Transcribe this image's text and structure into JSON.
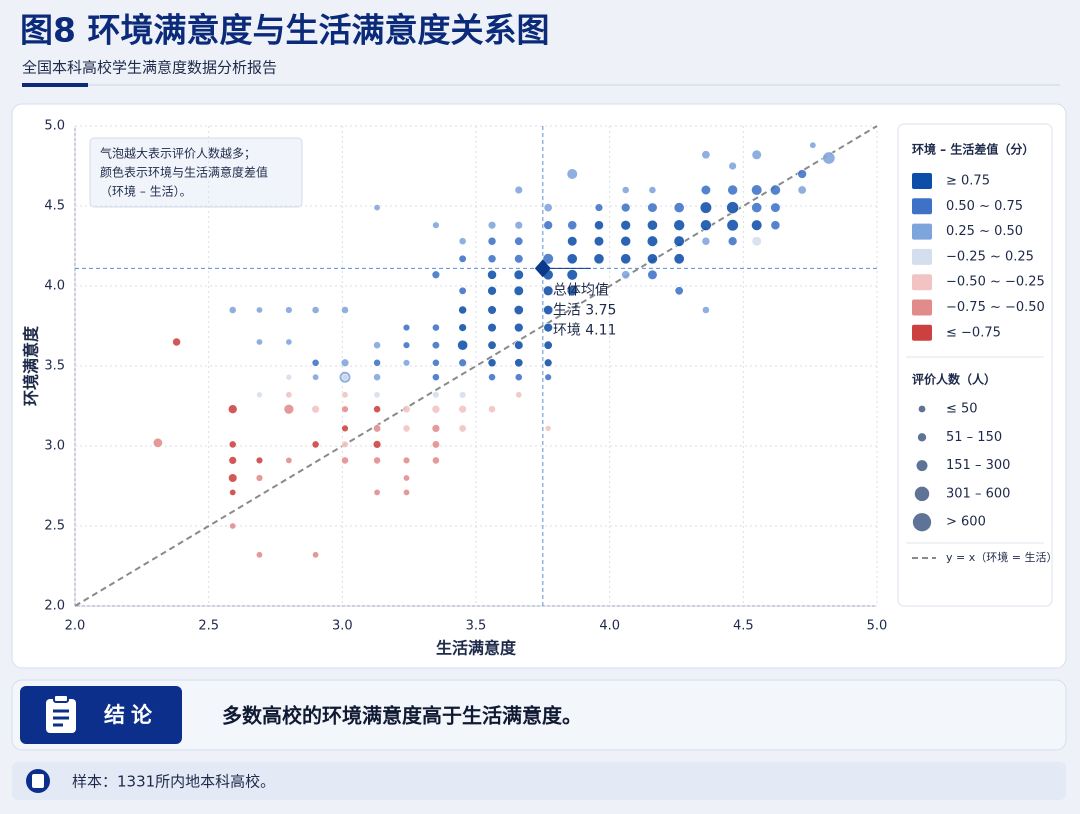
{
  "chart_data": {
    "type": "scatter",
    "title": "图8  环境满意度与生活满意度关系图",
    "subtitle": "全国本科高校学生满意度数据分析报告",
    "x_label": "生活满意度",
    "y_label": "环境满意度",
    "xlim": [
      2.0,
      5.0
    ],
    "ylim": [
      2.0,
      5.0
    ],
    "xticks": [
      {
        "value": 2.0,
        "label": "2.0"
      },
      {
        "value": 2.5,
        "label": "2.5"
      },
      {
        "value": 3.0,
        "label": "3.0"
      },
      {
        "value": 3.5,
        "label": "3.5"
      },
      {
        "value": 4.0,
        "label": "4.0"
      },
      {
        "value": 4.5,
        "label": "4.5"
      },
      {
        "value": 5.0,
        "label": "5.0"
      }
    ],
    "yticks": [
      {
        "value": 2.0,
        "label": "2.0"
      },
      {
        "value": 2.5,
        "label": "2.5"
      },
      {
        "value": 3.0,
        "label": "3.0"
      },
      {
        "value": 3.5,
        "label": "3.5"
      },
      {
        "value": 4.0,
        "label": "4.0"
      },
      {
        "value": 4.5,
        "label": "4.5"
      },
      {
        "value": 5.0,
        "label": "5.0"
      }
    ],
    "grid": true,
    "note_lines": [
      "气泡越大表示评价人数越多；",
      "颜色表示环境与生活满意度差值",
      "（环境 – 生活）。"
    ],
    "color_legend_title": "环境 – 生活差值（分）",
    "size_legend_title": "评价人数（人）",
    "size_legend": [
      {
        "label": "≤ 50",
        "value": 50
      },
      {
        "label": "51 – 150",
        "value": 100
      },
      {
        "label": "151 – 300",
        "value": 220
      },
      {
        "label": "301 – 600",
        "value": 450
      },
      {
        "label": "> 600",
        "value": 800
      }
    ],
    "reference_line": {
      "label": "y = x（环境 = 生活）",
      "color": "#8a8a8a"
    },
    "mean": {
      "label": "总体均值",
      "x": 3.75,
      "y": 4.11,
      "x_label": "生活 3.75",
      "y_label": "环境 4.11",
      "color": "#0b3a8c"
    },
    "series": [
      {
        "name": "≥ 0.75",
        "color": "#0d4fa8",
        "x": [
          3.45,
          3.45,
          3.45,
          3.56,
          3.56,
          3.56,
          3.56,
          3.56,
          3.56,
          3.66,
          3.66,
          3.66,
          3.66,
          3.66,
          3.66,
          3.77,
          3.77,
          3.77,
          3.77,
          3.77,
          3.77,
          3.86,
          3.86,
          3.86,
          3.86,
          3.96,
          3.96,
          3.96,
          4.06,
          4.06,
          4.06,
          4.16,
          4.16,
          4.16,
          4.26,
          4.26,
          4.26,
          4.36,
          4.36,
          4.46,
          4.46,
          4.55
        ],
        "y": [
          3.85,
          3.74,
          3.63,
          4.07,
          3.97,
          3.85,
          3.74,
          3.63,
          3.52,
          4.07,
          3.97,
          3.85,
          3.74,
          3.63,
          3.52,
          4.07,
          3.97,
          3.85,
          3.74,
          3.63,
          3.52,
          4.28,
          4.17,
          4.07,
          3.97,
          4.38,
          4.28,
          4.17,
          4.38,
          4.28,
          4.17,
          4.38,
          4.28,
          4.17,
          4.38,
          4.28,
          4.17,
          4.49,
          4.38,
          4.49,
          4.38,
          4.38
        ],
        "sizes": [
          90,
          80,
          180,
          130,
          120,
          110,
          110,
          100,
          90,
          150,
          150,
          140,
          120,
          110,
          100,
          180,
          160,
          140,
          120,
          100,
          80,
          150,
          180,
          200,
          180,
          130,
          150,
          180,
          160,
          170,
          180,
          180,
          200,
          180,
          220,
          200,
          190,
          250,
          220,
          280,
          250,
          200
        ]
      },
      {
        "name": "0.50 ~ 0.75",
        "color": "#3d72c6",
        "x": [
          2.9,
          3.13,
          3.24,
          3.24,
          3.35,
          3.35,
          3.35,
          3.35,
          3.35,
          3.45,
          3.45,
          3.56,
          3.56,
          3.66,
          3.66,
          3.77,
          3.77,
          3.86,
          3.96,
          4.06,
          4.16,
          4.26,
          4.36,
          4.46,
          4.55,
          4.62,
          4.62,
          4.72,
          4.55,
          4.62,
          4.46,
          4.16,
          4.26,
          3.45,
          3.56,
          3.66,
          3.77
        ],
        "y": [
          3.52,
          3.52,
          3.63,
          3.74,
          3.74,
          3.63,
          3.52,
          3.43,
          4.07,
          4.17,
          3.97,
          4.28,
          4.17,
          4.28,
          4.17,
          4.38,
          4.17,
          4.38,
          4.49,
          4.49,
          4.49,
          4.49,
          4.6,
          4.6,
          4.6,
          4.6,
          4.49,
          4.7,
          4.49,
          4.38,
          4.28,
          4.07,
          3.97,
          3.52,
          3.43,
          3.43,
          3.43
        ],
        "sizes": [
          60,
          60,
          50,
          50,
          60,
          70,
          60,
          60,
          80,
          70,
          70,
          90,
          90,
          100,
          110,
          120,
          200,
          130,
          80,
          120,
          150,
          180,
          150,
          170,
          200,
          180,
          150,
          120,
          180,
          130,
          120,
          150,
          100,
          80,
          60,
          60,
          50
        ]
      },
      {
        "name": "0.25 ~ 0.50",
        "color": "#7ea4dc",
        "x": [
          2.59,
          2.69,
          2.8,
          2.9,
          3.01,
          2.69,
          2.8,
          3.01,
          3.01,
          2.9,
          3.13,
          3.13,
          3.35,
          3.45,
          3.56,
          3.66,
          3.77,
          3.86,
          3.66,
          4.06,
          4.16,
          4.36,
          4.46,
          4.55,
          4.72,
          4.76,
          4.82,
          4.06,
          4.36,
          4.36,
          3.13,
          3.24
        ],
        "y": [
          3.85,
          3.85,
          3.85,
          3.85,
          3.85,
          3.65,
          3.65,
          3.52,
          3.43,
          3.43,
          3.43,
          4.49,
          4.38,
          4.28,
          4.38,
          4.38,
          4.49,
          4.7,
          4.6,
          4.6,
          4.6,
          4.82,
          4.75,
          4.82,
          4.6,
          4.88,
          4.8,
          4.07,
          3.85,
          4.28,
          3.63,
          3.52
        ],
        "sizes": [
          60,
          40,
          50,
          60,
          60,
          40,
          40,
          80,
          250,
          40,
          60,
          40,
          50,
          60,
          80,
          80,
          100,
          200,
          80,
          60,
          60,
          100,
          80,
          150,
          100,
          40,
          300,
          100,
          60,
          90,
          60,
          50
        ]
      },
      {
        "name": "−0.25 ~ 0.25",
        "color": "#d4deec",
        "x": [
          3.13,
          2.8,
          3.35,
          2.69,
          3.01,
          4.55,
          3.45
        ],
        "y": [
          3.32,
          3.43,
          3.32,
          3.32,
          3.43,
          4.28,
          3.32
        ],
        "sizes": [
          40,
          30,
          50,
          30,
          40,
          150,
          50
        ]
      },
      {
        "name": "−0.50 ~ −0.25",
        "color": "#f1c3c3",
        "x": [
          2.9,
          3.01,
          3.24,
          3.24,
          3.35,
          3.45,
          3.45,
          3.56,
          3.66,
          3.77,
          3.01,
          2.8
        ],
        "y": [
          3.23,
          3.01,
          3.11,
          3.23,
          3.23,
          3.23,
          3.11,
          3.23,
          3.32,
          3.11,
          3.32,
          3.32
        ],
        "sizes": [
          80,
          50,
          60,
          70,
          90,
          80,
          70,
          60,
          40,
          30,
          40,
          40
        ]
      },
      {
        "name": "−0.75 ~ −0.50",
        "color": "#e18b8b",
        "x": [
          2.31,
          2.59,
          2.69,
          2.69,
          2.9,
          2.8,
          3.01,
          3.01,
          3.13,
          3.13,
          3.24,
          3.24,
          3.35,
          3.35,
          3.13,
          3.24,
          3.35,
          2.8
        ],
        "y": [
          3.02,
          2.5,
          2.8,
          2.32,
          2.32,
          2.91,
          2.91,
          3.23,
          3.11,
          2.91,
          2.91,
          2.8,
          2.91,
          3.11,
          2.71,
          2.71,
          3.01,
          3.23
        ],
        "sizes": [
          140,
          40,
          50,
          40,
          40,
          40,
          60,
          50,
          70,
          60,
          50,
          40,
          60,
          80,
          40,
          40,
          70,
          160
        ]
      },
      {
        "name": "≤ −0.75",
        "color": "#cc4040",
        "x": [
          2.59,
          2.59,
          2.59,
          2.59,
          2.59,
          2.69,
          2.9,
          3.01,
          3.13,
          3.13,
          2.38
        ],
        "y": [
          3.23,
          3.01,
          2.91,
          2.8,
          2.71,
          2.91,
          3.01,
          3.11,
          3.23,
          3.01,
          3.65
        ],
        "sizes": [
          120,
          60,
          80,
          110,
          40,
          50,
          60,
          50,
          60,
          80,
          90
        ]
      }
    ]
  },
  "conclusion": {
    "badge": "结论",
    "text": "多数高校的环境满意度高于生活满意度。"
  },
  "footer": {
    "text": "样本：1331所内地本科高校。"
  }
}
